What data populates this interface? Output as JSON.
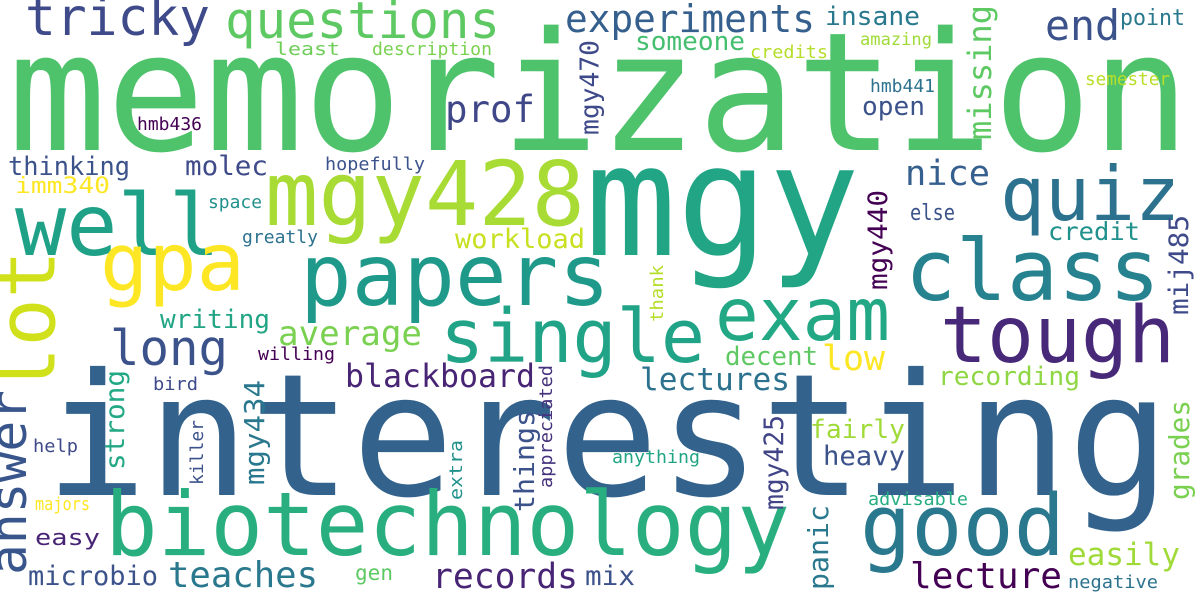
{
  "words": [
    "memorization",
    "interesting",
    "mgy",
    "biotechnology",
    "papers",
    "class",
    "single",
    "exam",
    "tough",
    "good",
    "mgy428",
    "quiz",
    "well",
    "gpa",
    "lot",
    "answer",
    "tricky",
    "questions",
    "experiments",
    "insane",
    "missing",
    "end",
    "point",
    "someone",
    "least",
    "description",
    "mgy470",
    "credits",
    "amazing",
    "semester",
    "prof",
    "hmb441",
    "open",
    "hmb436",
    "thinking",
    "molec",
    "hopefully",
    "nice",
    "imm340",
    "space",
    "greatly",
    "workload",
    "mgy440",
    "else",
    "credit",
    "mij485",
    "writing",
    "average",
    "long",
    "low",
    "decent",
    "blackboard",
    "lectures",
    "recording",
    "willing",
    "bird",
    "strong",
    "killer",
    "help",
    "appreciated",
    "extra",
    "mgy434",
    "things",
    "mgy425",
    "fairly",
    "heavy",
    "grades",
    "anything",
    "thank",
    "panic",
    "advisable",
    "majors",
    "easy",
    "microbio",
    "teaches",
    "gen",
    "records",
    "mix",
    "lecture",
    "easily",
    "negative"
  ]
}
